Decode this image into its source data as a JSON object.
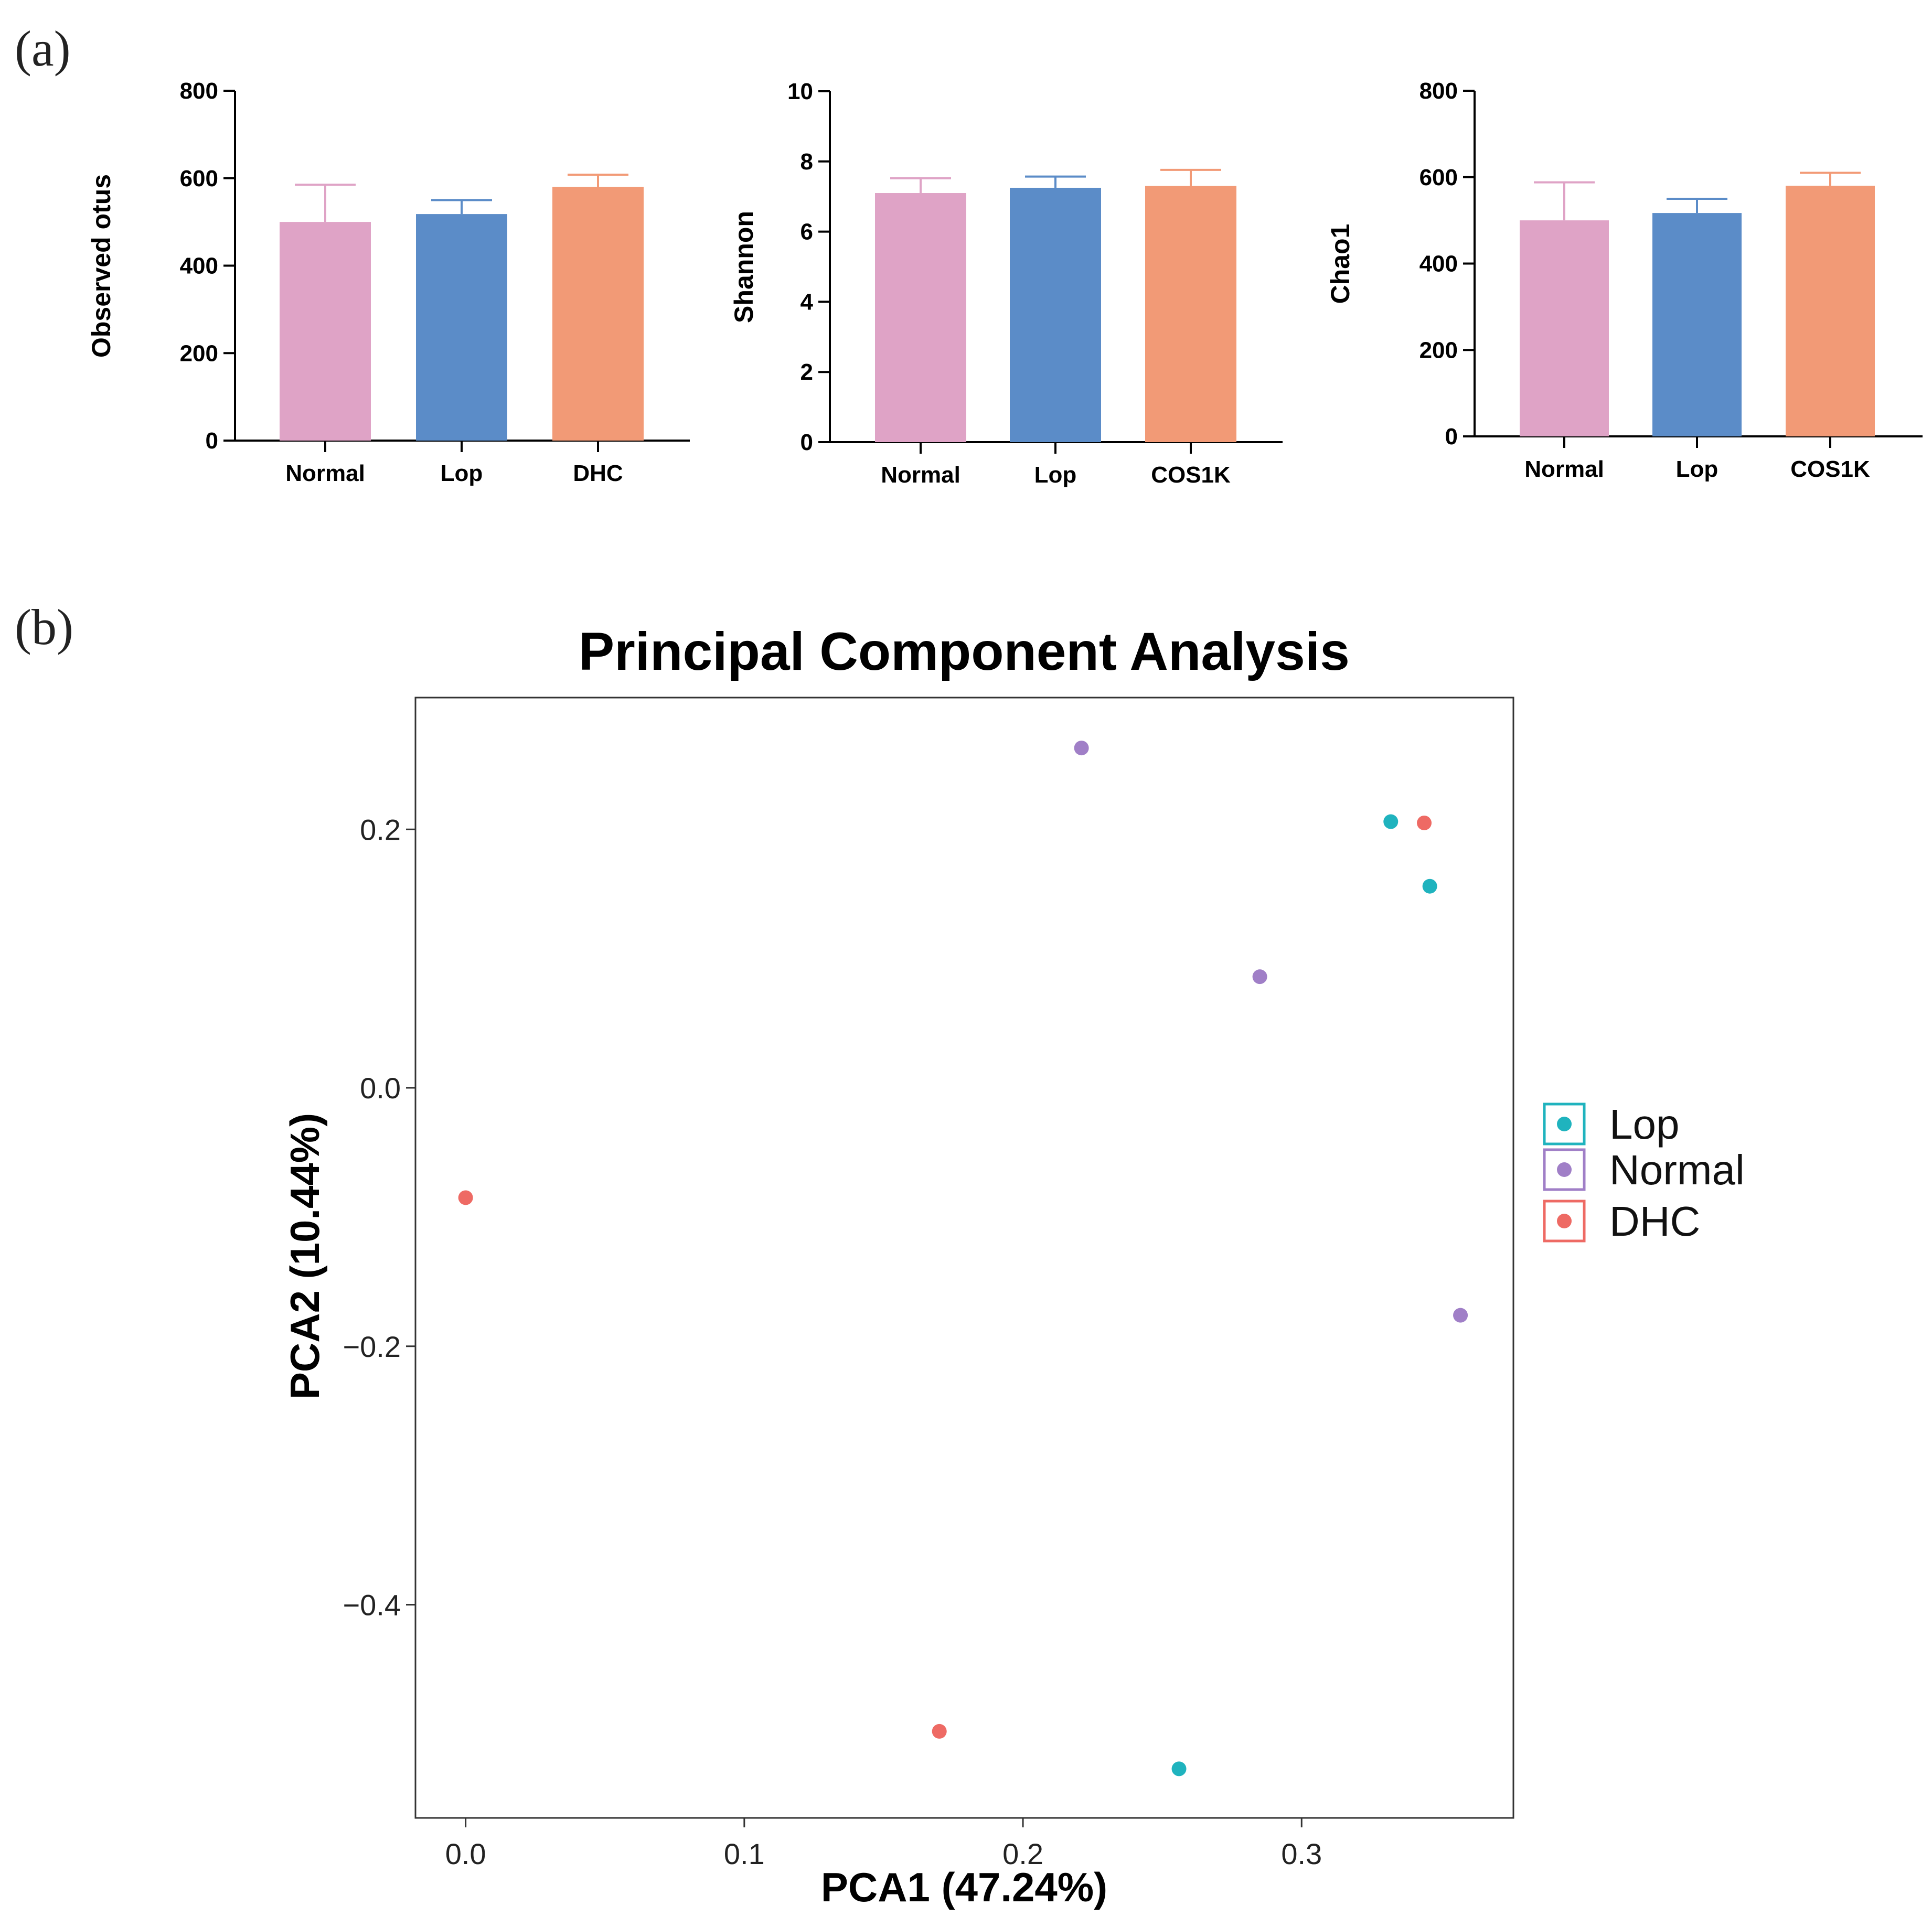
{
  "panels": {
    "a_label": "(a)",
    "b_label": "(b)"
  },
  "colors": {
    "Normal": "#DFA3C6",
    "Lop": "#5B8CC8",
    "DHC": "#F29A76",
    "COS1K": "#F29A76",
    "pca_Lop": "#1FB3BE",
    "pca_Normal": "#A07FC7",
    "pca_DHC": "#EE6A64"
  },
  "chart_data": [
    {
      "type": "bar",
      "id": "observed",
      "title": "",
      "xlabel": "",
      "ylabel": "Observed otus",
      "categories": [
        "Normal",
        "Lop",
        "DHC"
      ],
      "values": [
        500,
        518,
        580
      ],
      "errors": [
        85,
        32,
        28
      ],
      "ylim": [
        0,
        800
      ],
      "yticks": [
        "0",
        "200",
        "400",
        "600",
        "800"
      ],
      "ytick_values": [
        0,
        200,
        400,
        600,
        800
      ]
    },
    {
      "type": "bar",
      "id": "shannon",
      "title": "",
      "xlabel": "",
      "ylabel": "Shannon",
      "categories": [
        "Normal",
        "Lop",
        "COS1K"
      ],
      "values": [
        7.1,
        7.25,
        7.3
      ],
      "errors": [
        0.42,
        0.32,
        0.46
      ],
      "ylim": [
        0,
        10
      ],
      "yticks": [
        "0",
        "2",
        "4",
        "6",
        "8",
        "10"
      ],
      "ytick_values": [
        0,
        2,
        4,
        6,
        8,
        10
      ]
    },
    {
      "type": "bar",
      "id": "chao1",
      "title": "",
      "xlabel": "",
      "ylabel": "Chao1",
      "categories": [
        "Normal",
        "Lop",
        "COS1K"
      ],
      "values": [
        500,
        517,
        580
      ],
      "errors": [
        88,
        33,
        30
      ],
      "ylim": [
        0,
        800
      ],
      "yticks": [
        "0",
        "200",
        "400",
        "600",
        "800"
      ],
      "ytick_values": [
        0,
        200,
        400,
        600,
        800
      ]
    },
    {
      "type": "scatter",
      "id": "pca",
      "title": "Principal Component Analysis",
      "xlabel": "PCA1 (47.24%)",
      "ylabel": "PCA2 (10.44%)",
      "xlim": [
        -0.018,
        0.376
      ],
      "ylim": [
        -0.565,
        0.302
      ],
      "xticks": [
        "0.0",
        "0.1",
        "0.2",
        "0.3"
      ],
      "xtick_values": [
        0.0,
        0.1,
        0.2,
        0.3
      ],
      "yticks": [
        "0.2",
        "0.0",
        "−0.2",
        "−0.4"
      ],
      "ytick_values": [
        0.2,
        0.0,
        -0.2,
        -0.4
      ],
      "legend_position": "right",
      "series": [
        {
          "name": "Lop",
          "color": "#1FB3BE",
          "points": [
            [
              0.332,
              0.206
            ],
            [
              0.346,
              0.156
            ],
            [
              0.256,
              -0.527
            ]
          ]
        },
        {
          "name": "Normal",
          "color": "#A07FC7",
          "points": [
            [
              0.221,
              0.263
            ],
            [
              0.285,
              0.086
            ],
            [
              0.357,
              -0.176
            ]
          ]
        },
        {
          "name": "DHC",
          "color": "#EE6A64",
          "points": [
            [
              0.344,
              0.205
            ],
            [
              0.0,
              -0.085
            ],
            [
              0.17,
              -0.498
            ]
          ]
        }
      ]
    }
  ]
}
